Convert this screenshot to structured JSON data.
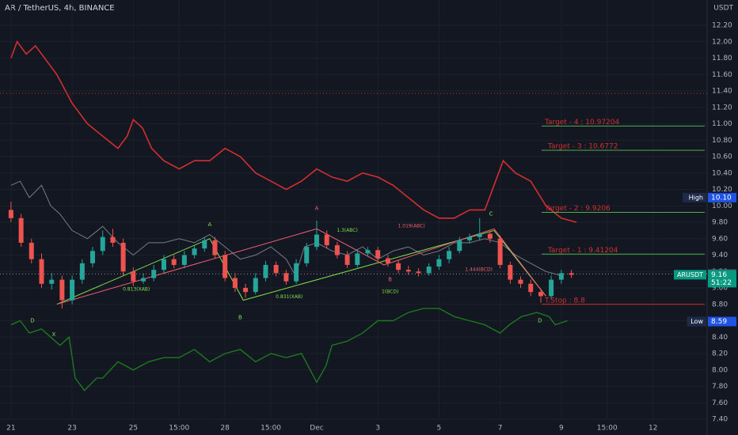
{
  "chart_data": {
    "type": "candlestick",
    "title": "AR / TetherUS, 4h, BINANCE",
    "currency": "USDT",
    "up_color": "#26a69a",
    "down_color": "#ef5350",
    "grid": true,
    "x": [
      0,
      0.33,
      0.67,
      1,
      1.33,
      1.67,
      2,
      2.33,
      2.67,
      3,
      3.33,
      3.67,
      4,
      4.33,
      4.67,
      5,
      5.33,
      5.67,
      6,
      6.33,
      6.67,
      7,
      7.33,
      7.67,
      8,
      8.33,
      8.67,
      9,
      9.33,
      9.67,
      10,
      10.33,
      10.67,
      11,
      11.33,
      11.67,
      12,
      12.33,
      12.67,
      13,
      13.33,
      13.67,
      14,
      14.33,
      14.67,
      15,
      15.33,
      15.67,
      16,
      16.33,
      16.67,
      17,
      17.33,
      17.67,
      18,
      18.33
    ],
    "open": [
      9.95,
      9.85,
      9.55,
      9.35,
      9.05,
      9.1,
      8.85,
      9.1,
      9.3,
      9.45,
      9.62,
      9.55,
      9.2,
      9.08,
      9.12,
      9.22,
      9.35,
      9.28,
      9.4,
      9.48,
      9.58,
      9.4,
      9.12,
      9.0,
      8.95,
      9.12,
      9.28,
      9.18,
      9.08,
      9.3,
      9.5,
      9.65,
      9.52,
      9.4,
      9.28,
      9.42,
      9.46,
      9.36,
      9.3,
      9.22,
      9.2,
      9.18,
      9.26,
      9.35,
      9.45,
      9.58,
      9.62,
      9.66,
      9.6,
      9.28,
      9.1,
      9.05,
      8.95,
      8.9,
      9.1,
      9.18
    ],
    "high": [
      10.05,
      9.9,
      9.6,
      9.42,
      9.18,
      9.15,
      9.15,
      9.35,
      9.5,
      9.7,
      9.72,
      9.6,
      9.25,
      9.18,
      9.28,
      9.4,
      9.4,
      9.45,
      9.52,
      9.62,
      9.62,
      9.45,
      9.18,
      9.05,
      9.18,
      9.33,
      9.32,
      9.22,
      9.35,
      9.55,
      9.82,
      9.7,
      9.56,
      9.45,
      9.47,
      9.5,
      9.5,
      9.4,
      9.34,
      9.27,
      9.24,
      9.3,
      9.4,
      9.5,
      9.62,
      9.66,
      9.85,
      9.7,
      9.64,
      9.32,
      9.14,
      9.1,
      8.99,
      9.15,
      9.22,
      9.22
    ],
    "low": [
      9.8,
      9.5,
      9.3,
      9.0,
      8.98,
      8.75,
      8.8,
      9.05,
      9.25,
      9.4,
      9.5,
      9.15,
      9.02,
      9.05,
      9.08,
      9.18,
      9.24,
      9.24,
      9.36,
      9.44,
      9.36,
      9.08,
      8.95,
      8.88,
      8.92,
      9.08,
      9.14,
      9.04,
      9.05,
      9.26,
      9.46,
      9.48,
      9.36,
      9.24,
      9.25,
      9.38,
      9.32,
      9.26,
      9.18,
      9.16,
      9.14,
      9.15,
      9.22,
      9.3,
      9.42,
      9.54,
      9.58,
      9.55,
      9.24,
      9.05,
      9.0,
      8.9,
      8.82,
      8.86,
      9.05,
      9.12
    ],
    "close": [
      9.85,
      9.55,
      9.35,
      9.05,
      9.1,
      8.85,
      9.1,
      9.3,
      9.45,
      9.62,
      9.55,
      9.2,
      9.08,
      9.12,
      9.22,
      9.35,
      9.28,
      9.4,
      9.48,
      9.58,
      9.4,
      9.12,
      9.0,
      8.95,
      9.12,
      9.28,
      9.18,
      9.08,
      9.3,
      9.5,
      9.65,
      9.52,
      9.4,
      9.28,
      9.42,
      9.46,
      9.36,
      9.3,
      9.22,
      9.2,
      9.18,
      9.26,
      9.35,
      9.45,
      9.58,
      9.62,
      9.66,
      9.6,
      9.28,
      9.1,
      9.05,
      8.95,
      8.9,
      9.1,
      9.18,
      9.16
    ],
    "lines": [
      {
        "color": "#d32f2f",
        "width": 1.6,
        "x": [
          0,
          0.2,
          0.5,
          0.8,
          1.2,
          1.5,
          2.0,
          2.5,
          3.0,
          3.5,
          3.8,
          4.0,
          4.3,
          4.6,
          5.0,
          5.5,
          6.0,
          6.5,
          7.0,
          7.5,
          8.0,
          8.5,
          9.0,
          9.5,
          10.0,
          10.5,
          11.0,
          11.5,
          12.0,
          12.5,
          13.0,
          13.5,
          14.0,
          14.5,
          15.0,
          15.5,
          15.8,
          16.1,
          16.5,
          17.0,
          17.5,
          18.0,
          18.5
        ],
        "values": [
          11.8,
          12.0,
          11.85,
          11.95,
          11.75,
          11.6,
          11.25,
          11.0,
          10.85,
          10.7,
          10.85,
          11.05,
          10.95,
          10.7,
          10.55,
          10.45,
          10.55,
          10.55,
          10.7,
          10.6,
          10.4,
          10.3,
          10.2,
          10.3,
          10.45,
          10.35,
          10.3,
          10.4,
          10.35,
          10.25,
          10.1,
          9.95,
          9.85,
          9.85,
          9.95,
          9.95,
          10.25,
          10.55,
          10.4,
          10.3,
          10.0,
          9.85,
          9.8
        ]
      },
      {
        "color": "#787b86",
        "width": 1,
        "x": [
          0,
          0.3,
          0.6,
          1.0,
          1.3,
          1.6,
          2.0,
          2.5,
          3.0,
          3.5,
          4.0,
          4.5,
          5.0,
          5.5,
          6.0,
          6.5,
          7.0,
          7.5,
          8.0,
          8.5,
          9.0,
          9.3,
          9.6,
          10.0,
          10.5,
          11.0,
          11.5,
          12.0,
          12.5,
          13.0,
          13.5,
          14.0,
          14.5,
          15.0,
          15.5,
          16.0,
          16.5,
          17.0,
          17.5,
          18.0
        ],
        "values": [
          10.25,
          10.3,
          10.1,
          10.25,
          10.0,
          9.9,
          9.7,
          9.6,
          9.75,
          9.55,
          9.4,
          9.55,
          9.55,
          9.6,
          9.55,
          9.65,
          9.5,
          9.35,
          9.4,
          9.5,
          9.35,
          9.15,
          9.5,
          9.55,
          9.45,
          9.4,
          9.5,
          9.35,
          9.45,
          9.5,
          9.4,
          9.45,
          9.55,
          9.55,
          9.6,
          9.55,
          9.4,
          9.3,
          9.2,
          9.15
        ]
      },
      {
        "color": "#1b7a1b",
        "width": 1.4,
        "x": [
          0,
          0.3,
          0.6,
          1.0,
          1.3,
          1.6,
          1.9,
          2.1,
          2.4,
          2.8,
          3.0,
          3.5,
          4.0,
          4.5,
          5.0,
          5.5,
          6.0,
          6.5,
          7.0,
          7.5,
          8.0,
          8.5,
          9.0,
          9.5,
          10.0,
          10.3,
          10.5,
          11.0,
          11.5,
          12.0,
          12.5,
          13.0,
          13.5,
          14.0,
          14.5,
          15.0,
          15.5,
          16.0,
          16.3,
          16.7,
          17.2,
          17.6,
          17.8,
          18.2
        ],
        "values": [
          8.55,
          8.6,
          8.45,
          8.5,
          8.4,
          8.3,
          8.4,
          7.9,
          7.75,
          7.9,
          7.9,
          8.1,
          8.0,
          8.1,
          8.15,
          8.15,
          8.25,
          8.1,
          8.2,
          8.25,
          8.1,
          8.2,
          8.15,
          8.2,
          7.85,
          8.05,
          8.3,
          8.35,
          8.45,
          8.6,
          8.6,
          8.7,
          8.75,
          8.75,
          8.65,
          8.6,
          8.55,
          8.45,
          8.55,
          8.65,
          8.7,
          8.65,
          8.55,
          8.6
        ]
      }
    ],
    "patterns": [
      {
        "color": "#7ee04a",
        "x": [
          1.5,
          6.5,
          7.6,
          15.8,
          17.5
        ],
        "values": [
          8.8,
          9.6,
          8.85,
          9.7,
          8.9
        ]
      },
      {
        "color": "#f06070",
        "x": [
          1.5,
          10.0,
          12.2,
          15.8,
          17.5
        ],
        "values": [
          8.8,
          9.72,
          9.28,
          9.72,
          8.9
        ]
      }
    ],
    "hlines": [
      {
        "value": 11.37,
        "color": "#d32f2f"
      },
      {
        "value": 9.17,
        "color": "#9598a1"
      }
    ],
    "annotations": [
      {
        "text": "A",
        "x": 6.5,
        "y": 9.77,
        "color": "#7ee04a"
      },
      {
        "text": "A",
        "x": 10.0,
        "y": 9.97,
        "color": "#f06070"
      },
      {
        "text": "B",
        "x": 7.5,
        "y": 8.64,
        "color": "#7ee04a"
      },
      {
        "text": "B",
        "x": 12.4,
        "y": 9.1,
        "color": "#f06070"
      },
      {
        "text": "C",
        "x": 15.7,
        "y": 9.9,
        "color": "#7ee04a"
      },
      {
        "text": "D",
        "x": 0.7,
        "y": 8.6,
        "color": "#7ee04a"
      },
      {
        "text": "D",
        "x": 17.3,
        "y": 8.6,
        "color": "#7ee04a"
      },
      {
        "text": "X",
        "x": 1.4,
        "y": 8.43,
        "color": "#7ee04a"
      },
      {
        "text": "0.813(XAB)",
        "x": 4.1,
        "y": 8.98,
        "color": "#7ee04a"
      },
      {
        "text": "0.831(XAB)",
        "x": 9.1,
        "y": 8.89,
        "color": "#7ee04a"
      },
      {
        "text": "1.3(ABC)",
        "x": 11.0,
        "y": 9.7,
        "color": "#7ee04a"
      },
      {
        "text": "1.019(ABC)",
        "x": 13.1,
        "y": 9.75,
        "color": "#f06070"
      },
      {
        "text": "1(BCD)",
        "x": 12.4,
        "y": 8.95,
        "color": "#7ee04a"
      },
      {
        "text": "1.444(BCD)",
        "x": 15.3,
        "y": 9.22,
        "color": "#f06070"
      }
    ],
    "targets": [
      {
        "label": "Target - 4 : 10.97204",
        "value": 10.97204,
        "color": "#d32f2f"
      },
      {
        "label": "Target - 3 : 10.6772",
        "value": 10.6772,
        "color": "#d32f2f"
      },
      {
        "label": "Target - 2 : 9.9206",
        "value": 9.9206,
        "color": "#d32f2f"
      },
      {
        "label": "Target - 1 : 9.41204",
        "value": 9.41204,
        "color": "#d32f2f"
      },
      {
        "label": "T.Stop : 8.8",
        "value": 8.8,
        "color": "#d32f2f"
      }
    ],
    "price_tags": [
      {
        "name": "High",
        "value": 10.1,
        "label": "10.10",
        "color": "#1e53e5"
      },
      {
        "name": "Low",
        "value": 8.59,
        "label": "8.59",
        "color": "#1e53e5"
      },
      {
        "value": 9.17,
        "label": "9.17",
        "color": "#434651"
      },
      {
        "name": "ARUSDT",
        "value": 9.16,
        "label": "9.16",
        "countdown": "51:22",
        "color": "#089981"
      }
    ],
    "xlim": [
      -0.36,
      22.77
    ],
    "xticks": [
      {
        "value": 0,
        "label": "21"
      },
      {
        "value": 2,
        "label": "23"
      },
      {
        "value": 4,
        "label": "25"
      },
      {
        "value": 5.5,
        "label": "15:00"
      },
      {
        "value": 7,
        "label": "28"
      },
      {
        "value": 8.5,
        "label": "15:00"
      },
      {
        "value": 10,
        "label": "Dec"
      },
      {
        "value": 12,
        "label": "3"
      },
      {
        "value": 14,
        "label": "5"
      },
      {
        "value": 16,
        "label": "7"
      },
      {
        "value": 18,
        "label": "9"
      },
      {
        "value": 19.5,
        "label": "15:00"
      },
      {
        "value": 21,
        "label": "12"
      }
    ],
    "ylim": [
      7.4,
      12.2
    ],
    "yticks": [
      {
        "value": 7.4,
        "label": "7.40"
      },
      {
        "value": 7.6,
        "label": "7.60"
      },
      {
        "value": 7.8,
        "label": "7.80"
      },
      {
        "value": 8,
        "label": "8.00"
      },
      {
        "value": 8.2,
        "label": "8.20"
      },
      {
        "value": 8.4,
        "label": "8.40"
      },
      {
        "value": 8.6,
        "label": "8.60"
      },
      {
        "value": 8.8,
        "label": "8.80"
      },
      {
        "value": 9,
        "label": "9.00"
      },
      {
        "value": 9.2,
        "label": "9.20"
      },
      {
        "value": 9.4,
        "label": "9.40"
      },
      {
        "value": 9.6,
        "label": "9.60"
      },
      {
        "value": 9.8,
        "label": "9.80"
      },
      {
        "value": 10,
        "label": "10.00"
      },
      {
        "value": 10.2,
        "label": "10.20"
      },
      {
        "value": 10.4,
        "label": "10.40"
      },
      {
        "value": 10.6,
        "label": "10.60"
      },
      {
        "value": 10.8,
        "label": "10.80"
      },
      {
        "value": 11,
        "label": "11.00"
      },
      {
        "value": 11.2,
        "label": "11.20"
      },
      {
        "value": 11.4,
        "label": "11.40"
      },
      {
        "value": 11.6,
        "label": "11.60"
      },
      {
        "value": 11.8,
        "label": "11.80"
      },
      {
        "value": 12,
        "label": "12.00"
      },
      {
        "value": 12.2,
        "label": "12.20"
      }
    ]
  }
}
